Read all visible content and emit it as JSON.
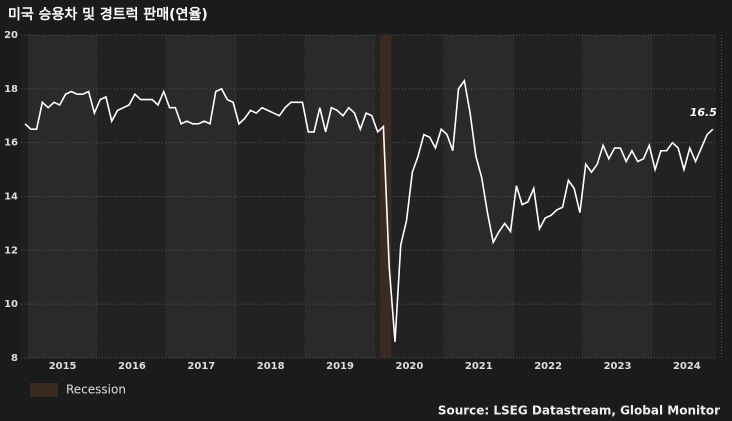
{
  "chart_data": {
    "type": "line",
    "title": "미국 승용차 및 경트럭 판매(연율)",
    "source": "Source: LSEG Datastream, Global Monitor",
    "recession_label": "Recession",
    "recession_color": "#3a2a22",
    "recessions": [
      [
        2020.08,
        2020.24
      ]
    ],
    "color": "#ffffff",
    "x": [
      2014.958,
      2015.042,
      2015.125,
      2015.208,
      2015.292,
      2015.375,
      2015.458,
      2015.542,
      2015.625,
      2015.708,
      2015.792,
      2015.875,
      2015.958,
      2016.042,
      2016.125,
      2016.208,
      2016.292,
      2016.375,
      2016.458,
      2016.542,
      2016.625,
      2016.708,
      2016.792,
      2016.875,
      2016.958,
      2017.042,
      2017.125,
      2017.208,
      2017.292,
      2017.375,
      2017.458,
      2017.542,
      2017.625,
      2017.708,
      2017.792,
      2017.875,
      2017.958,
      2018.042,
      2018.125,
      2018.208,
      2018.292,
      2018.375,
      2018.458,
      2018.542,
      2018.625,
      2018.708,
      2018.792,
      2018.875,
      2018.958,
      2019.042,
      2019.125,
      2019.208,
      2019.292,
      2019.375,
      2019.458,
      2019.542,
      2019.625,
      2019.708,
      2019.792,
      2019.875,
      2019.958,
      2020.042,
      2020.125,
      2020.208,
      2020.292,
      2020.375,
      2020.458,
      2020.542,
      2020.625,
      2020.708,
      2020.792,
      2020.875,
      2020.958,
      2021.042,
      2021.125,
      2021.208,
      2021.292,
      2021.375,
      2021.458,
      2021.542,
      2021.625,
      2021.708,
      2021.792,
      2021.875,
      2021.958,
      2022.042,
      2022.125,
      2022.208,
      2022.292,
      2022.375,
      2022.458,
      2022.542,
      2022.625,
      2022.708,
      2022.792,
      2022.875,
      2022.958,
      2023.042,
      2023.125,
      2023.208,
      2023.292,
      2023.375,
      2023.458,
      2023.542,
      2023.625,
      2023.708,
      2023.792,
      2023.875,
      2023.958,
      2024.042,
      2024.125,
      2024.208,
      2024.292,
      2024.375,
      2024.458,
      2024.542,
      2024.625,
      2024.708,
      2024.792,
      2024.875
    ],
    "values": [
      16.7,
      16.5,
      16.5,
      17.5,
      17.3,
      17.5,
      17.4,
      17.8,
      17.9,
      17.8,
      17.8,
      17.9,
      17.1,
      17.6,
      17.7,
      16.8,
      17.2,
      17.3,
      17.4,
      17.8,
      17.6,
      17.6,
      17.6,
      17.4,
      17.9,
      17.3,
      17.3,
      16.7,
      16.8,
      16.7,
      16.7,
      16.8,
      16.7,
      17.9,
      18.0,
      17.6,
      17.5,
      16.7,
      16.9,
      17.2,
      17.1,
      17.3,
      17.2,
      17.1,
      17.0,
      17.3,
      17.5,
      17.5,
      17.5,
      16.4,
      16.4,
      17.3,
      16.4,
      17.3,
      17.2,
      17.0,
      17.3,
      17.1,
      16.5,
      17.1,
      17.0,
      16.4,
      16.6,
      11.4,
      8.6,
      12.2,
      13.1,
      14.9,
      15.5,
      16.3,
      16.2,
      15.8,
      16.5,
      16.3,
      15.7,
      18.0,
      18.3,
      17.1,
      15.5,
      14.7,
      13.4,
      12.3,
      12.7,
      13.0,
      12.7,
      14.4,
      13.7,
      13.8,
      14.3,
      12.8,
      13.2,
      13.3,
      13.5,
      13.6,
      14.6,
      14.3,
      13.4,
      15.2,
      14.9,
      15.2,
      15.9,
      15.4,
      15.8,
      15.8,
      15.3,
      15.7,
      15.3,
      15.4,
      15.9,
      15.0,
      15.7,
      15.7,
      16.0,
      15.8,
      15.0,
      15.8,
      15.3,
      15.8,
      16.3,
      16.5
    ],
    "label_last": true,
    "xlim": [
      2014.9,
      2024.92
    ],
    "ylim": [
      8,
      20
    ],
    "yticks": [
      8,
      10,
      12,
      14,
      16,
      18,
      20
    ],
    "xticks": [
      {
        "value": 2015.5,
        "label": "2015"
      },
      {
        "value": 2016.5,
        "label": "2016"
      },
      {
        "value": 2017.5,
        "label": "2017"
      },
      {
        "value": 2018.5,
        "label": "2018"
      },
      {
        "value": 2019.5,
        "label": "2019"
      },
      {
        "value": 2020.5,
        "label": "2020"
      },
      {
        "value": 2021.5,
        "label": "2021"
      },
      {
        "value": 2022.5,
        "label": "2022"
      },
      {
        "value": 2023.5,
        "label": "2023"
      },
      {
        "value": 2024.5,
        "label": "2024"
      }
    ],
    "grid": true
  }
}
